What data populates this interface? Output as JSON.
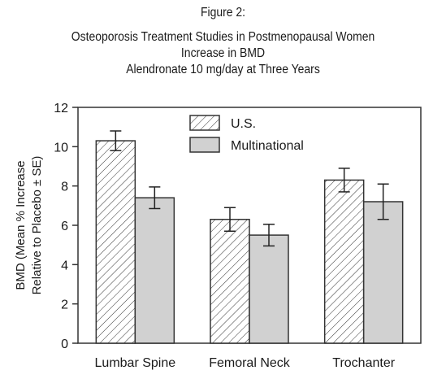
{
  "figure_label": "Figure 2:",
  "chart_data": {
    "type": "bar",
    "title": "Osteoporosis Treatment Studies in Postmenopausal Women",
    "subtitle_lines": [
      "Increase in BMD",
      "Alendronate 10 mg/day at Three Years"
    ],
    "categories": [
      "Lumbar Spine",
      "Femoral Neck",
      "Trochanter"
    ],
    "series": [
      {
        "name": "U.S.",
        "values": [
          10.3,
          6.3,
          8.3
        ],
        "errors": [
          0.5,
          0.6,
          0.6
        ],
        "fill": "hatch"
      },
      {
        "name": "Multinational",
        "values": [
          7.4,
          5.5,
          7.2
        ],
        "errors": [
          0.55,
          0.55,
          0.9
        ],
        "fill": "#d1d1d1"
      }
    ],
    "ylabel_lines": [
      "BMD (Mean % Increase",
      "Relative to Placebo ± SE)"
    ],
    "xlabel": "",
    "ylim": [
      0,
      12
    ],
    "yticks": [
      0,
      2,
      4,
      6,
      8,
      10,
      12
    ],
    "grid": false,
    "legend_position": "top-center"
  }
}
